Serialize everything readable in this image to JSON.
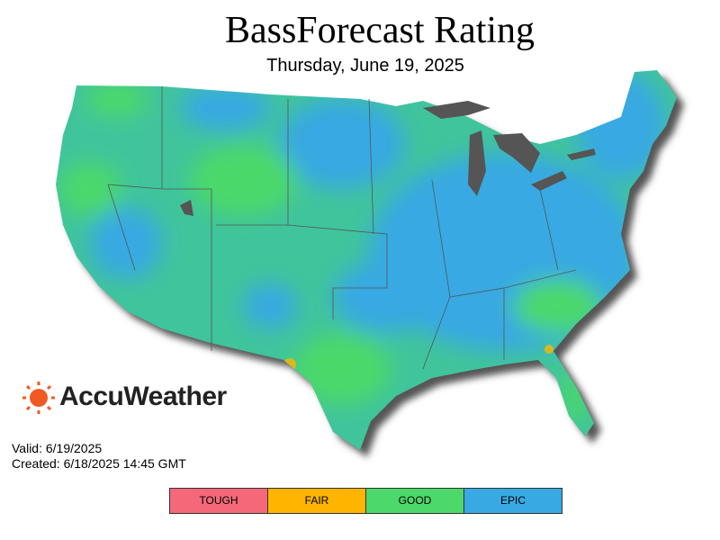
{
  "header": {
    "title": "BassForecast Rating",
    "subtitle": "Thursday, June 19, 2025"
  },
  "brand": "AccuWeather",
  "footer": {
    "valid": "Valid: 6/19/2025",
    "created": "Created: 6/18/2025 14:45 GMT"
  },
  "legend": [
    {
      "label": "TOUGH",
      "color": "#f4687a"
    },
    {
      "label": "FAIR",
      "color": "#ffb400"
    },
    {
      "label": "GOOD",
      "color": "#4cd86a"
    },
    {
      "label": "EPIC",
      "color": "#38a9e2"
    }
  ]
}
